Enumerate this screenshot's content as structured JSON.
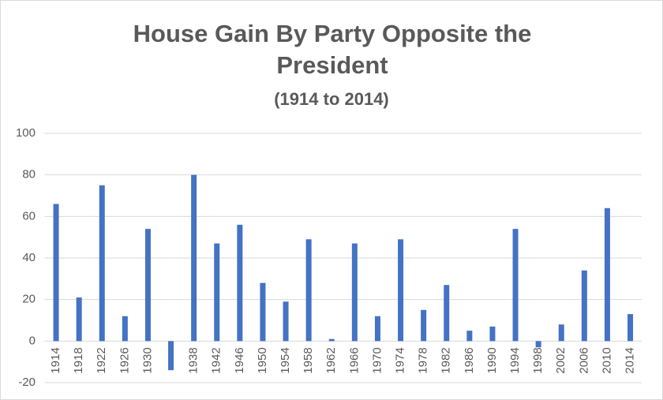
{
  "chart_data": {
    "type": "bar",
    "title": "House Gain By Party Opposite the President",
    "subtitle": "(1914 to 2014)",
    "categories": [
      "1914",
      "1918",
      "1922",
      "1926",
      "1930",
      null,
      "1938",
      "1942",
      "1946",
      "1950",
      "1954",
      "1958",
      "1962",
      "1966",
      "1970",
      "1974",
      "1978",
      "1982",
      "1986",
      "1990",
      "1994",
      "1998",
      "2002",
      "2006",
      "2010",
      "2014"
    ],
    "values": [
      66,
      21,
      75,
      12,
      54,
      -14,
      80,
      47,
      56,
      28,
      19,
      49,
      1,
      47,
      12,
      49,
      15,
      27,
      5,
      7,
      54,
      -3,
      8,
      34,
      64,
      13
    ],
    "color": "#4472c4",
    "ylim": [
      -20,
      100
    ],
    "yticks": [
      -20,
      0,
      20,
      40,
      60,
      80,
      100
    ],
    "grid": true
  }
}
